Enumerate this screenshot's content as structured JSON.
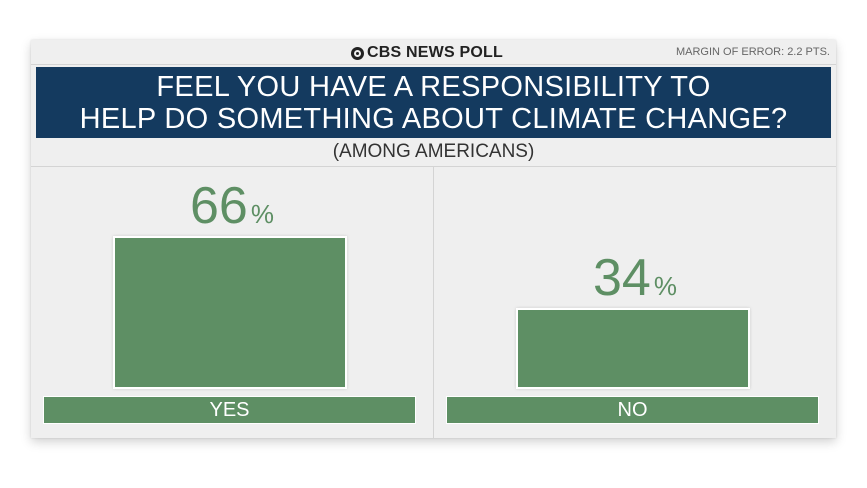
{
  "brand": "CBS NEWS POLL",
  "margin_of_error": "MARGIN OF ERROR: 2.2 PTS.",
  "title_lines": [
    "FEEL YOU HAVE A RESPONSIBILITY TO",
    "HELP DO SOMETHING ABOUT CLIMATE CHANGE?"
  ],
  "subtitle": "(AMONG AMERICANS)",
  "chart_data": {
    "type": "bar",
    "title": "FEEL YOU HAVE A RESPONSIBILITY TO HELP DO SOMETHING ABOUT CLIMATE CHANGE?",
    "subtitle": "(AMONG AMERICANS)",
    "categories": [
      "YES",
      "NO"
    ],
    "values": [
      66,
      34
    ],
    "value_labels": [
      "66",
      "34"
    ],
    "unit": "%",
    "ylim": [
      0,
      66
    ],
    "bar_color": "#5e8f64",
    "title_bg_color": "#143a5f"
  }
}
